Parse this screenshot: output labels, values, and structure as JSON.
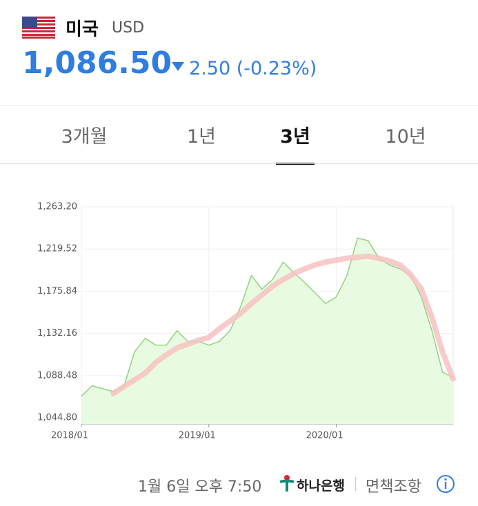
{
  "header": {
    "country": "미국",
    "currency": "USD",
    "rate": "1,086.50",
    "change": "2.50",
    "change_pct": "(-0.23%)"
  },
  "tabs": [
    "3개월",
    "1년",
    "3년",
    "10년"
  ],
  "active_tab": 2,
  "chart_data": {
    "type": "line",
    "x": [
      "2018/01",
      "2018/02",
      "2018/03",
      "2018/04",
      "2018/05",
      "2018/06",
      "2018/07",
      "2018/08",
      "2018/09",
      "2018/10",
      "2018/11",
      "2018/12",
      "2019/01",
      "2019/02",
      "2019/03",
      "2019/04",
      "2019/05",
      "2019/06",
      "2019/07",
      "2019/08",
      "2019/09",
      "2019/10",
      "2019/11",
      "2019/12",
      "2020/01",
      "2020/02",
      "2020/03",
      "2020/04",
      "2020/05",
      "2020/06",
      "2020/07",
      "2020/08",
      "2020/09",
      "2020/10",
      "2020/11",
      "2020/12"
    ],
    "series": [
      {
        "color": "#8fd47a",
        "fill": "#e8fbe2",
        "values": [
          1067,
          1078,
          1075,
          1072,
          1077,
          1113,
          1127,
          1120,
          1120,
          1135,
          1124,
          1124,
          1120,
          1124,
          1135,
          1160,
          1192,
          1178,
          1188,
          1206,
          1195,
          1185,
          1174,
          1163,
          1170,
          1192,
          1231,
          1228,
          1210,
          1203,
          1199,
          1192,
          1170,
          1135,
          1092,
          1086.5
        ]
      },
      {
        "color": "#f6c2c2",
        "values": [
          null,
          null,
          null,
          1070,
          1077,
          1084,
          1091,
          1102,
          1110,
          1117,
          1121,
          1125,
          1128,
          1137,
          1145,
          1153,
          1163,
          1172,
          1181,
          1188,
          1194,
          1199,
          1203,
          1206,
          1208,
          1210,
          1211,
          1212,
          1210,
          1207,
          1203,
          1193,
          1178,
          1149,
          1113,
          1085
        ]
      }
    ],
    "ylim": [
      1038.4,
      1263.2
    ],
    "yticks": [
      {
        "value": 1044.8,
        "label": "1,044.80"
      },
      {
        "value": 1088.48,
        "label": "1,088.48"
      },
      {
        "value": 1132.16,
        "label": "1,132.16"
      },
      {
        "value": 1175.84,
        "label": "1,175.84"
      },
      {
        "value": 1219.52,
        "label": "1,219.52"
      },
      {
        "value": 1263.2,
        "label": "1,263.20"
      }
    ],
    "xticks": [
      "2018/01",
      "2019/01",
      "2020/01"
    ],
    "grid": true
  },
  "footer": {
    "time": "1월 6일 오후 7:50",
    "bank": "하나은행",
    "disclaimer": "면책조항"
  }
}
